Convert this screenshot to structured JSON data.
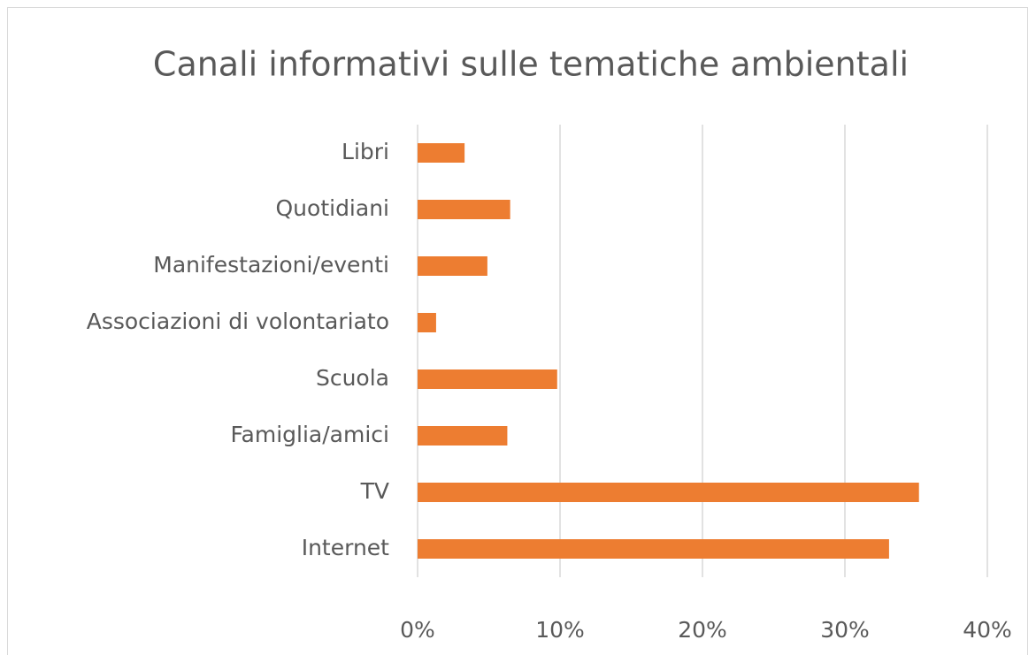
{
  "chart_data": {
    "type": "bar",
    "orientation": "horizontal",
    "title": "Canali informativi sulle tematiche ambientali",
    "categories": [
      "Libri",
      "Quotidiani",
      "Manifestazioni/eventi",
      "Associazioni di volontariato",
      "Scuola",
      "Famiglia/amici",
      "TV",
      "Internet"
    ],
    "values": [
      3.3,
      6.5,
      4.9,
      1.3,
      9.8,
      6.3,
      35.2,
      33.1
    ],
    "color": "#ed7d31",
    "xlim": [
      0,
      40
    ],
    "xticks": [
      {
        "value": 0,
        "label": "0%"
      },
      {
        "value": 10,
        "label": "10%"
      },
      {
        "value": 20,
        "label": "20%"
      },
      {
        "value": 30,
        "label": "30%"
      },
      {
        "value": 40,
        "label": "40%"
      }
    ],
    "grid": true
  }
}
